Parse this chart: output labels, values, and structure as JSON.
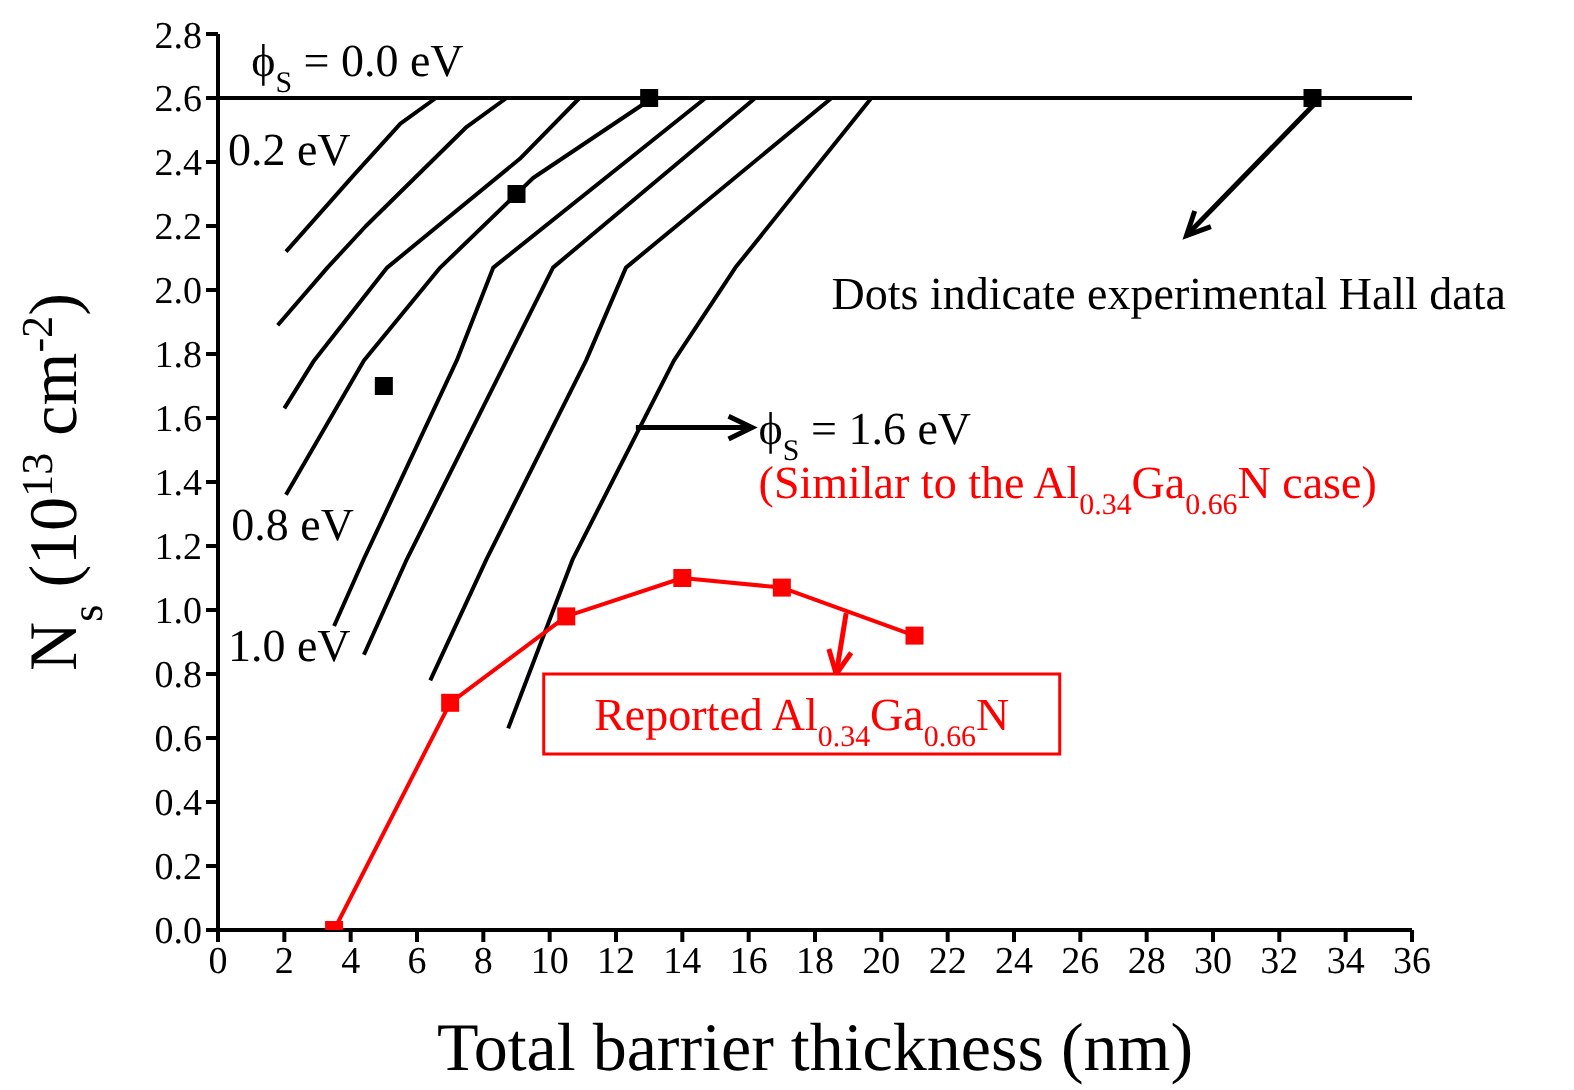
{
  "chart_data": {
    "type": "line",
    "xlabel": "Total barrier thickness (nm)",
    "ylabel": "N$_{s}$ (10$^{13}$ cm$^{-2}$)",
    "xlim": [
      0,
      36
    ],
    "xticks": [
      0,
      2,
      4,
      6,
      8,
      10,
      12,
      14,
      16,
      18,
      20,
      22,
      24,
      26,
      28,
      30,
      32,
      34,
      36
    ],
    "ylim": [
      0,
      2.8
    ],
    "yticks": [
      {
        "value": 0,
        "label": "0.0"
      },
      {
        "value": 0.2,
        "label": "0.2"
      },
      {
        "value": 0.4,
        "label": "0.4"
      },
      {
        "value": 0.6,
        "label": "0.6"
      },
      {
        "value": 0.8,
        "label": "0.8"
      },
      {
        "value": 1,
        "label": "1.0"
      },
      {
        "value": 1.2,
        "label": "1.2"
      },
      {
        "value": 1.4,
        "label": "1.4"
      },
      {
        "value": 1.6,
        "label": "1.6"
      },
      {
        "value": 1.8,
        "label": "1.8"
      },
      {
        "value": 2,
        "label": "2.0"
      },
      {
        "value": 2.2,
        "label": "2.2"
      },
      {
        "value": 2.4,
        "label": "2.4"
      },
      {
        "value": 2.6,
        "label": "2.6"
      },
      {
        "value": 2.8,
        "label": "2.8"
      }
    ],
    "series": [
      {
        "color": "#000000",
        "marker": "none",
        "x": [
          0,
          36
        ],
        "values": [
          2.6,
          2.6
        ]
      },
      {
        "color": "#000000",
        "marker": "none",
        "x": [
          2.05,
          4.1,
          5.5,
          6.57
        ],
        "values": [
          2.12,
          2.36,
          2.52,
          2.6
        ]
      },
      {
        "color": "#000000",
        "marker": "none",
        "x": [
          1.8,
          3.3,
          4.46,
          7.5,
          8.7
        ],
        "values": [
          1.89,
          2.07,
          2.2,
          2.51,
          2.6
        ]
      },
      {
        "color": "#000000",
        "marker": "none",
        "x": [
          2.0,
          2.9,
          5.1,
          9.1,
          10.9
        ],
        "values": [
          1.63,
          1.78,
          2.07,
          2.41,
          2.6
        ]
      },
      {
        "color": "#000000",
        "marker": "none",
        "x": [
          2.05,
          4.4,
          6.7,
          9.5,
          13.1
        ],
        "values": [
          1.36,
          1.78,
          2.07,
          2.35,
          2.6
        ]
      },
      {
        "color": "#000000",
        "marker": "none",
        "x": [
          3.5,
          4.4,
          7.2,
          8.3,
          14.7
        ],
        "values": [
          0.95,
          1.16,
          1.78,
          2.07,
          2.6
        ]
      },
      {
        "color": "#000000",
        "marker": "none",
        "x": [
          4.4,
          5.7,
          8.7,
          10.1,
          16.2
        ],
        "values": [
          0.86,
          1.16,
          1.78,
          2.07,
          2.6
        ]
      },
      {
        "color": "#000000",
        "marker": "none",
        "x": [
          6.4,
          8.1,
          11.1,
          12.3,
          18.5
        ],
        "values": [
          0.78,
          1.16,
          1.78,
          2.07,
          2.6
        ]
      },
      {
        "color": "#000000",
        "marker": "none",
        "x": [
          8.75,
          10.7,
          13.75,
          15.6,
          19.7
        ],
        "values": [
          0.63,
          1.16,
          1.78,
          2.07,
          2.6
        ]
      },
      {
        "type": "scatter",
        "color": "#000000",
        "marker": "square",
        "x": [
          5,
          9,
          13,
          33
        ],
        "values": [
          1.7,
          2.3,
          2.6,
          2.6
        ]
      },
      {
        "color": "#ff0000",
        "marker": "square",
        "x": [
          3.5,
          7,
          10.5,
          14,
          17,
          21
        ],
        "values": [
          0,
          0.71,
          0.98,
          1.1,
          1.07,
          0.92
        ]
      }
    ],
    "annotations": [
      "ϕ$_{S}$ = 0.0 eV",
      "0.2 eV",
      "0.8 eV",
      "1.0 eV",
      "ϕ$_{S}$ = 1.6 eV",
      "(Similar to the Al$_{0.34}$Ga$_{0.66}$N case)",
      {
        "text": "Dots indicate experimental Hall data",
        "x": 33,
        "y": 2.6
      },
      "Reported Al$_{0.34}$Ga$_{0.66}$N"
    ]
  }
}
